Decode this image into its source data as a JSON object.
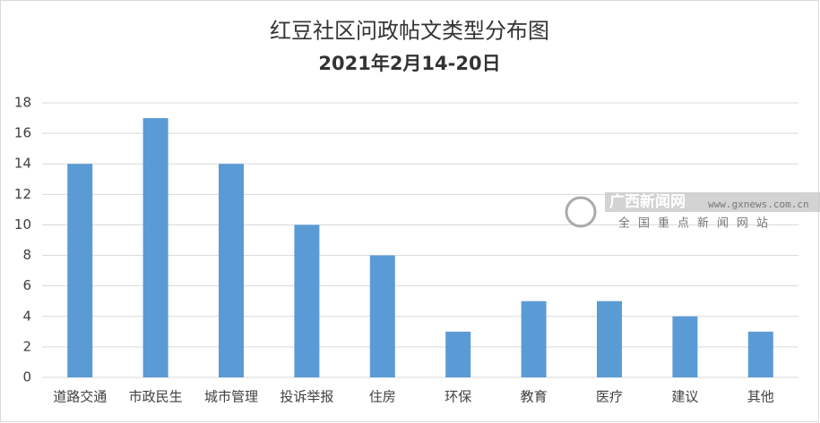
{
  "chart_data": {
    "type": "bar",
    "title": "红豆社区问政帖文类型分布图",
    "subtitle": "2021年2月14-20日",
    "categories": [
      "道路交通",
      "市政民生",
      "城市管理",
      "投诉举报",
      "住房",
      "环保",
      "教育",
      "医疗",
      "建议",
      "其他"
    ],
    "values": [
      14,
      17,
      14,
      10,
      8,
      3,
      5,
      5,
      4,
      3
    ],
    "color": "#5b9bd5",
    "ylim": [
      0,
      18
    ],
    "yticks": [
      0,
      2,
      4,
      6,
      8,
      10,
      12,
      14,
      16,
      18
    ],
    "grid": true,
    "watermark": {
      "name": "广西新闻网",
      "url": "www.gxnews.com.cn",
      "tagline": "全国重点新闻网站"
    }
  }
}
